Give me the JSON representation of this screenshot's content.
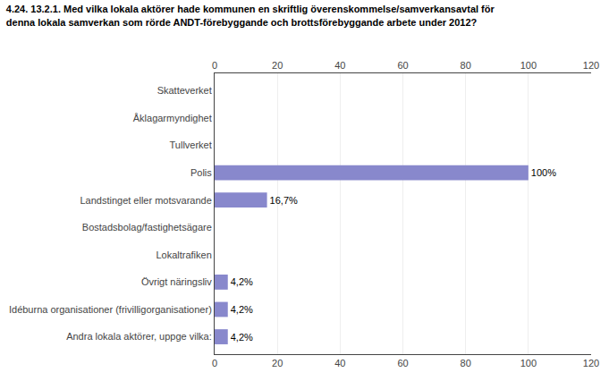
{
  "chart_data": {
    "type": "bar",
    "orientation": "horizontal",
    "title": "4.24. 13.2.1. Med vilka lokala aktörer hade kommunen en skriftlig överenskommelse/samverkansavtal för\ndenna lokala samverkan som rörde ANDT-förebyggande och brottsförebyggande arbete under 2012?",
    "categories": [
      "Skatteverket",
      "Åklagarmyndighet",
      "Tullverket",
      "Polis",
      "Landstinget eller motsvarande",
      "Bostadsbolag/fastighetsägare",
      "Lokaltrafiken",
      "Övrigt näringsliv",
      "Idéburna organisationer (frivilligorganisationer)",
      "Andra lokala aktörer, uppge vilka:"
    ],
    "values": [
      0,
      0,
      0,
      100,
      16.7,
      0,
      0,
      4.2,
      4.2,
      4.2
    ],
    "value_labels": [
      null,
      null,
      null,
      "100%",
      "16,7%",
      null,
      null,
      "4,2%",
      "4,2%",
      "4,2%"
    ],
    "data_labels": true,
    "color": "#8888cc",
    "xlim": [
      0,
      120
    ],
    "xticks": [
      0,
      20,
      40,
      60,
      80,
      100,
      120
    ],
    "grid": true
  }
}
